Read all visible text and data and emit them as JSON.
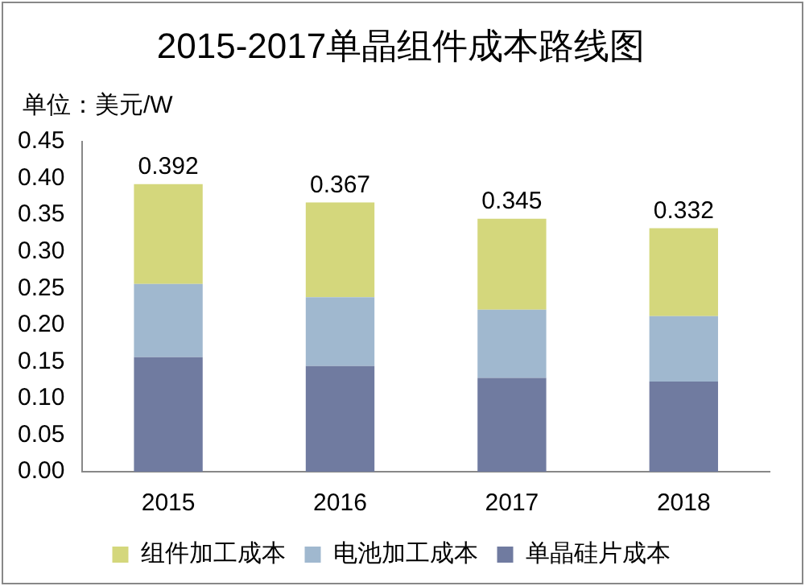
{
  "chart_data": {
    "type": "bar",
    "title": "2015-2017单晶组件成本路线图",
    "ylabel": "单位：美元/W",
    "categories": [
      "2015",
      "2016",
      "2017",
      "2018"
    ],
    "series": [
      {
        "name": "单晶硅片成本",
        "color": "#707ba0",
        "values": [
          0.156,
          0.144,
          0.128,
          0.123
        ]
      },
      {
        "name": "电池加工成本",
        "color": "#a0b8cf",
        "values": [
          0.1,
          0.094,
          0.093,
          0.089
        ]
      },
      {
        "name": "组件加工成本",
        "color": "#d4d77c",
        "values": [
          0.136,
          0.129,
          0.124,
          0.12
        ]
      }
    ],
    "stacked": true,
    "totals": [
      "0.392",
      "0.367",
      "0.345",
      "0.332"
    ],
    "ylim": [
      0,
      0.45
    ],
    "yticks": [
      {
        "value": 0,
        "label": "0.00"
      },
      0.05,
      {
        "value": 0.1,
        "label": "0.10"
      },
      0.15,
      {
        "value": 0.2,
        "label": "0.20"
      },
      0.25,
      {
        "value": 0.3,
        "label": "0.30"
      },
      0.35,
      {
        "value": 0.4,
        "label": "0.40"
      },
      0.45
    ],
    "grid": false,
    "legend": "bottom"
  }
}
